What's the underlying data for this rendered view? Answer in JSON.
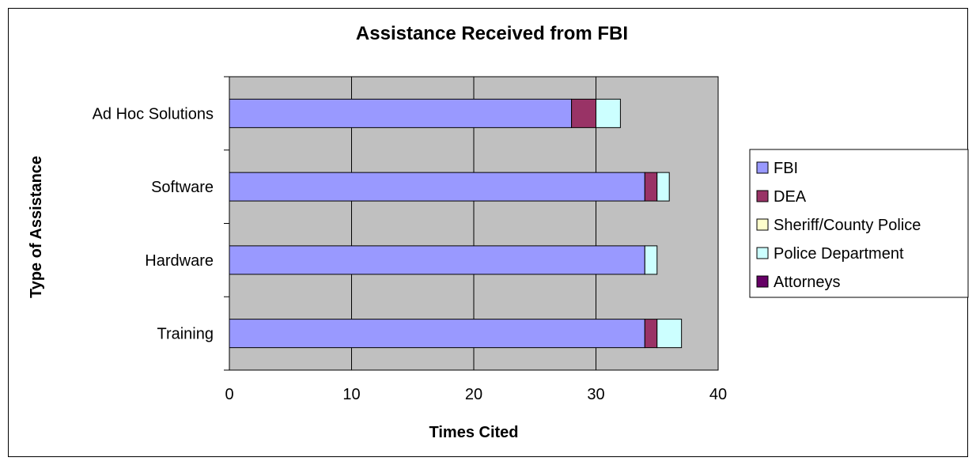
{
  "chart_data": {
    "type": "bar",
    "orientation": "horizontal",
    "stacked": true,
    "title": "Assistance Received from FBI",
    "xlabel": "Times Cited",
    "ylabel": "Type of Assistance",
    "xlim": [
      0,
      40
    ],
    "xticks": [
      "0",
      "10",
      "20",
      "30",
      "40"
    ],
    "grid": true,
    "legend_position": "right",
    "plot_background": "#c0c0c0",
    "categories": [
      "Ad Hoc Solutions",
      "Software",
      "Hardware",
      "Training"
    ],
    "series": [
      {
        "name": "FBI",
        "color": "#9999ff",
        "values": [
          28,
          34,
          34,
          34
        ]
      },
      {
        "name": "DEA",
        "color": "#993366",
        "values": [
          2,
          1,
          0,
          1
        ]
      },
      {
        "name": "Sheriff/County Police",
        "color": "#ffffcc",
        "values": [
          0,
          0,
          0,
          0
        ]
      },
      {
        "name": "Police Department",
        "color": "#ccffff",
        "values": [
          2,
          1,
          1,
          2
        ]
      },
      {
        "name": "Attorneys",
        "color": "#660066",
        "values": [
          0,
          0,
          0,
          0
        ]
      }
    ]
  }
}
